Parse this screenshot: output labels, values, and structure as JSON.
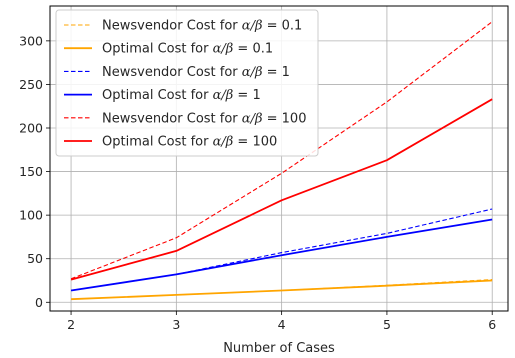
{
  "chart_data": {
    "type": "line",
    "title": "",
    "xlabel": "Number of Cases",
    "ylabel": "",
    "x": [
      2,
      3,
      4,
      5,
      6
    ],
    "xlim": [
      1.8,
      6.15
    ],
    "ylim": [
      -10,
      340
    ],
    "xticks": [
      2,
      3,
      4,
      5,
      6
    ],
    "yticks": [
      0,
      50,
      100,
      150,
      200,
      250,
      300
    ],
    "grid": true,
    "legend_position": "top-left",
    "series": [
      {
        "name": "Newsvendor Cost for α/β = 0.1",
        "name_prefix": "Newsvendor Cost for ",
        "ratio_value": "0.1",
        "color": "#ffa500",
        "style": "dashed",
        "values": [
          3.5,
          8.5,
          13.5,
          19.5,
          26
        ]
      },
      {
        "name": "Optimal Cost for α/β = 0.1",
        "name_prefix": "Optimal Cost for ",
        "ratio_value": "0.1",
        "color": "#ffa500",
        "style": "solid",
        "values": [
          3.5,
          8.5,
          13.5,
          19,
          25
        ]
      },
      {
        "name": "Newsvendor Cost for α/β = 1",
        "name_prefix": "Newsvendor Cost for ",
        "ratio_value": "1",
        "color": "#0000ff",
        "style": "dashed",
        "values": [
          13.5,
          32,
          57,
          79,
          107
        ]
      },
      {
        "name": "Optimal Cost for α/β = 1",
        "name_prefix": "Optimal Cost for ",
        "ratio_value": "1",
        "color": "#0000ff",
        "style": "solid",
        "values": [
          13.5,
          32,
          54,
          75,
          95
        ]
      },
      {
        "name": "Newsvendor Cost for α/β = 100",
        "name_prefix": "Newsvendor Cost for ",
        "ratio_value": "100",
        "color": "#ff0000",
        "style": "dashed",
        "values": [
          27,
          74,
          148,
          230,
          322
        ]
      },
      {
        "name": "Optimal Cost for α/β = 100",
        "name_prefix": "Optimal Cost for ",
        "ratio_value": "100",
        "color": "#ff0000",
        "style": "solid",
        "values": [
          26,
          59,
          117,
          163,
          233
        ]
      }
    ]
  }
}
